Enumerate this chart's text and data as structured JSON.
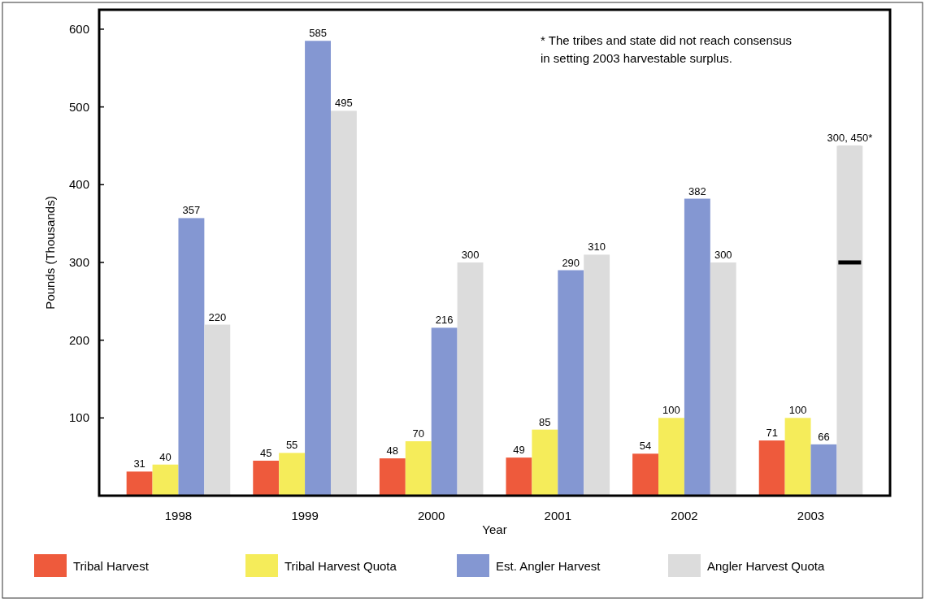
{
  "chart_data": {
    "type": "bar",
    "xlabel": "Year",
    "ylabel": "Pounds (Thousands)",
    "categories": [
      "1998",
      "1999",
      "2000",
      "2001",
      "2002",
      "2003"
    ],
    "series": [
      {
        "name": "Tribal Harvest",
        "color": "#ee5a3c",
        "values": [
          31,
          45,
          48,
          49,
          54,
          71
        ],
        "value_labels": [
          "31",
          "45",
          "48",
          "49",
          "54",
          "71"
        ]
      },
      {
        "name": "Tribal Harvest Quota",
        "color": "#f5ec5a",
        "values": [
          40,
          55,
          70,
          85,
          100,
          100
        ],
        "value_labels": [
          "40",
          "55",
          "70",
          "85",
          "100",
          "100"
        ]
      },
      {
        "name": "Est. Angler Harvest",
        "color": "#8497d2",
        "values": [
          357,
          585,
          216,
          290,
          382,
          66
        ],
        "value_labels": [
          "357",
          "585",
          "216",
          "290",
          "382",
          "66"
        ]
      },
      {
        "name": "Angler Harvest Quota",
        "color": "#dcdcdc",
        "values": [
          220,
          495,
          300,
          310,
          300,
          450
        ],
        "value_labels": [
          "220",
          "495",
          "300",
          "310",
          "300",
          "300, 450*"
        ],
        "errors": [
          null,
          null,
          null,
          null,
          null,
          [
            300,
            450
          ]
        ]
      }
    ],
    "ylim": [
      0,
      625
    ],
    "yticks": [
      100,
      200,
      300,
      400,
      500,
      600
    ],
    "grid": false,
    "legend": "bottom",
    "annotations": [
      "* The tribes and state did not reach consensus\nin setting 2003 harvestable surplus."
    ]
  }
}
